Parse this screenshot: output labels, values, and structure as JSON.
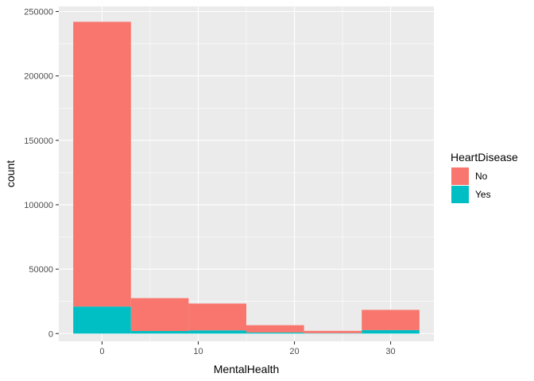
{
  "chart_data": {
    "type": "bar",
    "subtype": "stacked-histogram",
    "title": "",
    "xlabel": "MentalHealth",
    "ylabel": "count",
    "xlim": [
      -4.5,
      34.5
    ],
    "ylim": [
      -6000,
      254000
    ],
    "x_ticks": [
      0,
      10,
      20,
      30
    ],
    "x_tick_labels": [
      "0",
      "10",
      "20",
      "30"
    ],
    "y_ticks": [
      0,
      50000,
      100000,
      150000,
      200000,
      250000
    ],
    "y_tick_labels": [
      "0",
      "50000",
      "100000",
      "150000",
      "200000",
      "250000"
    ],
    "bins": [
      {
        "start": -3,
        "end": 3
      },
      {
        "start": 3,
        "end": 9
      },
      {
        "start": 9,
        "end": 15
      },
      {
        "start": 15,
        "end": 21
      },
      {
        "start": 21,
        "end": 27
      },
      {
        "start": 27,
        "end": 33
      }
    ],
    "series": [
      {
        "name": "No",
        "color": "#F8766D",
        "values": [
          221000,
          25500,
          20800,
          5600,
          1800,
          15700
        ]
      },
      {
        "name": "Yes",
        "color": "#00BFC4",
        "values": [
          21000,
          2000,
          2500,
          900,
          300,
          2700
        ]
      }
    ],
    "legend": {
      "title": "HeartDisease",
      "placement": "right"
    },
    "grid": true,
    "panel_background": "#EBEBEB",
    "grid_color": "#FFFFFF"
  }
}
